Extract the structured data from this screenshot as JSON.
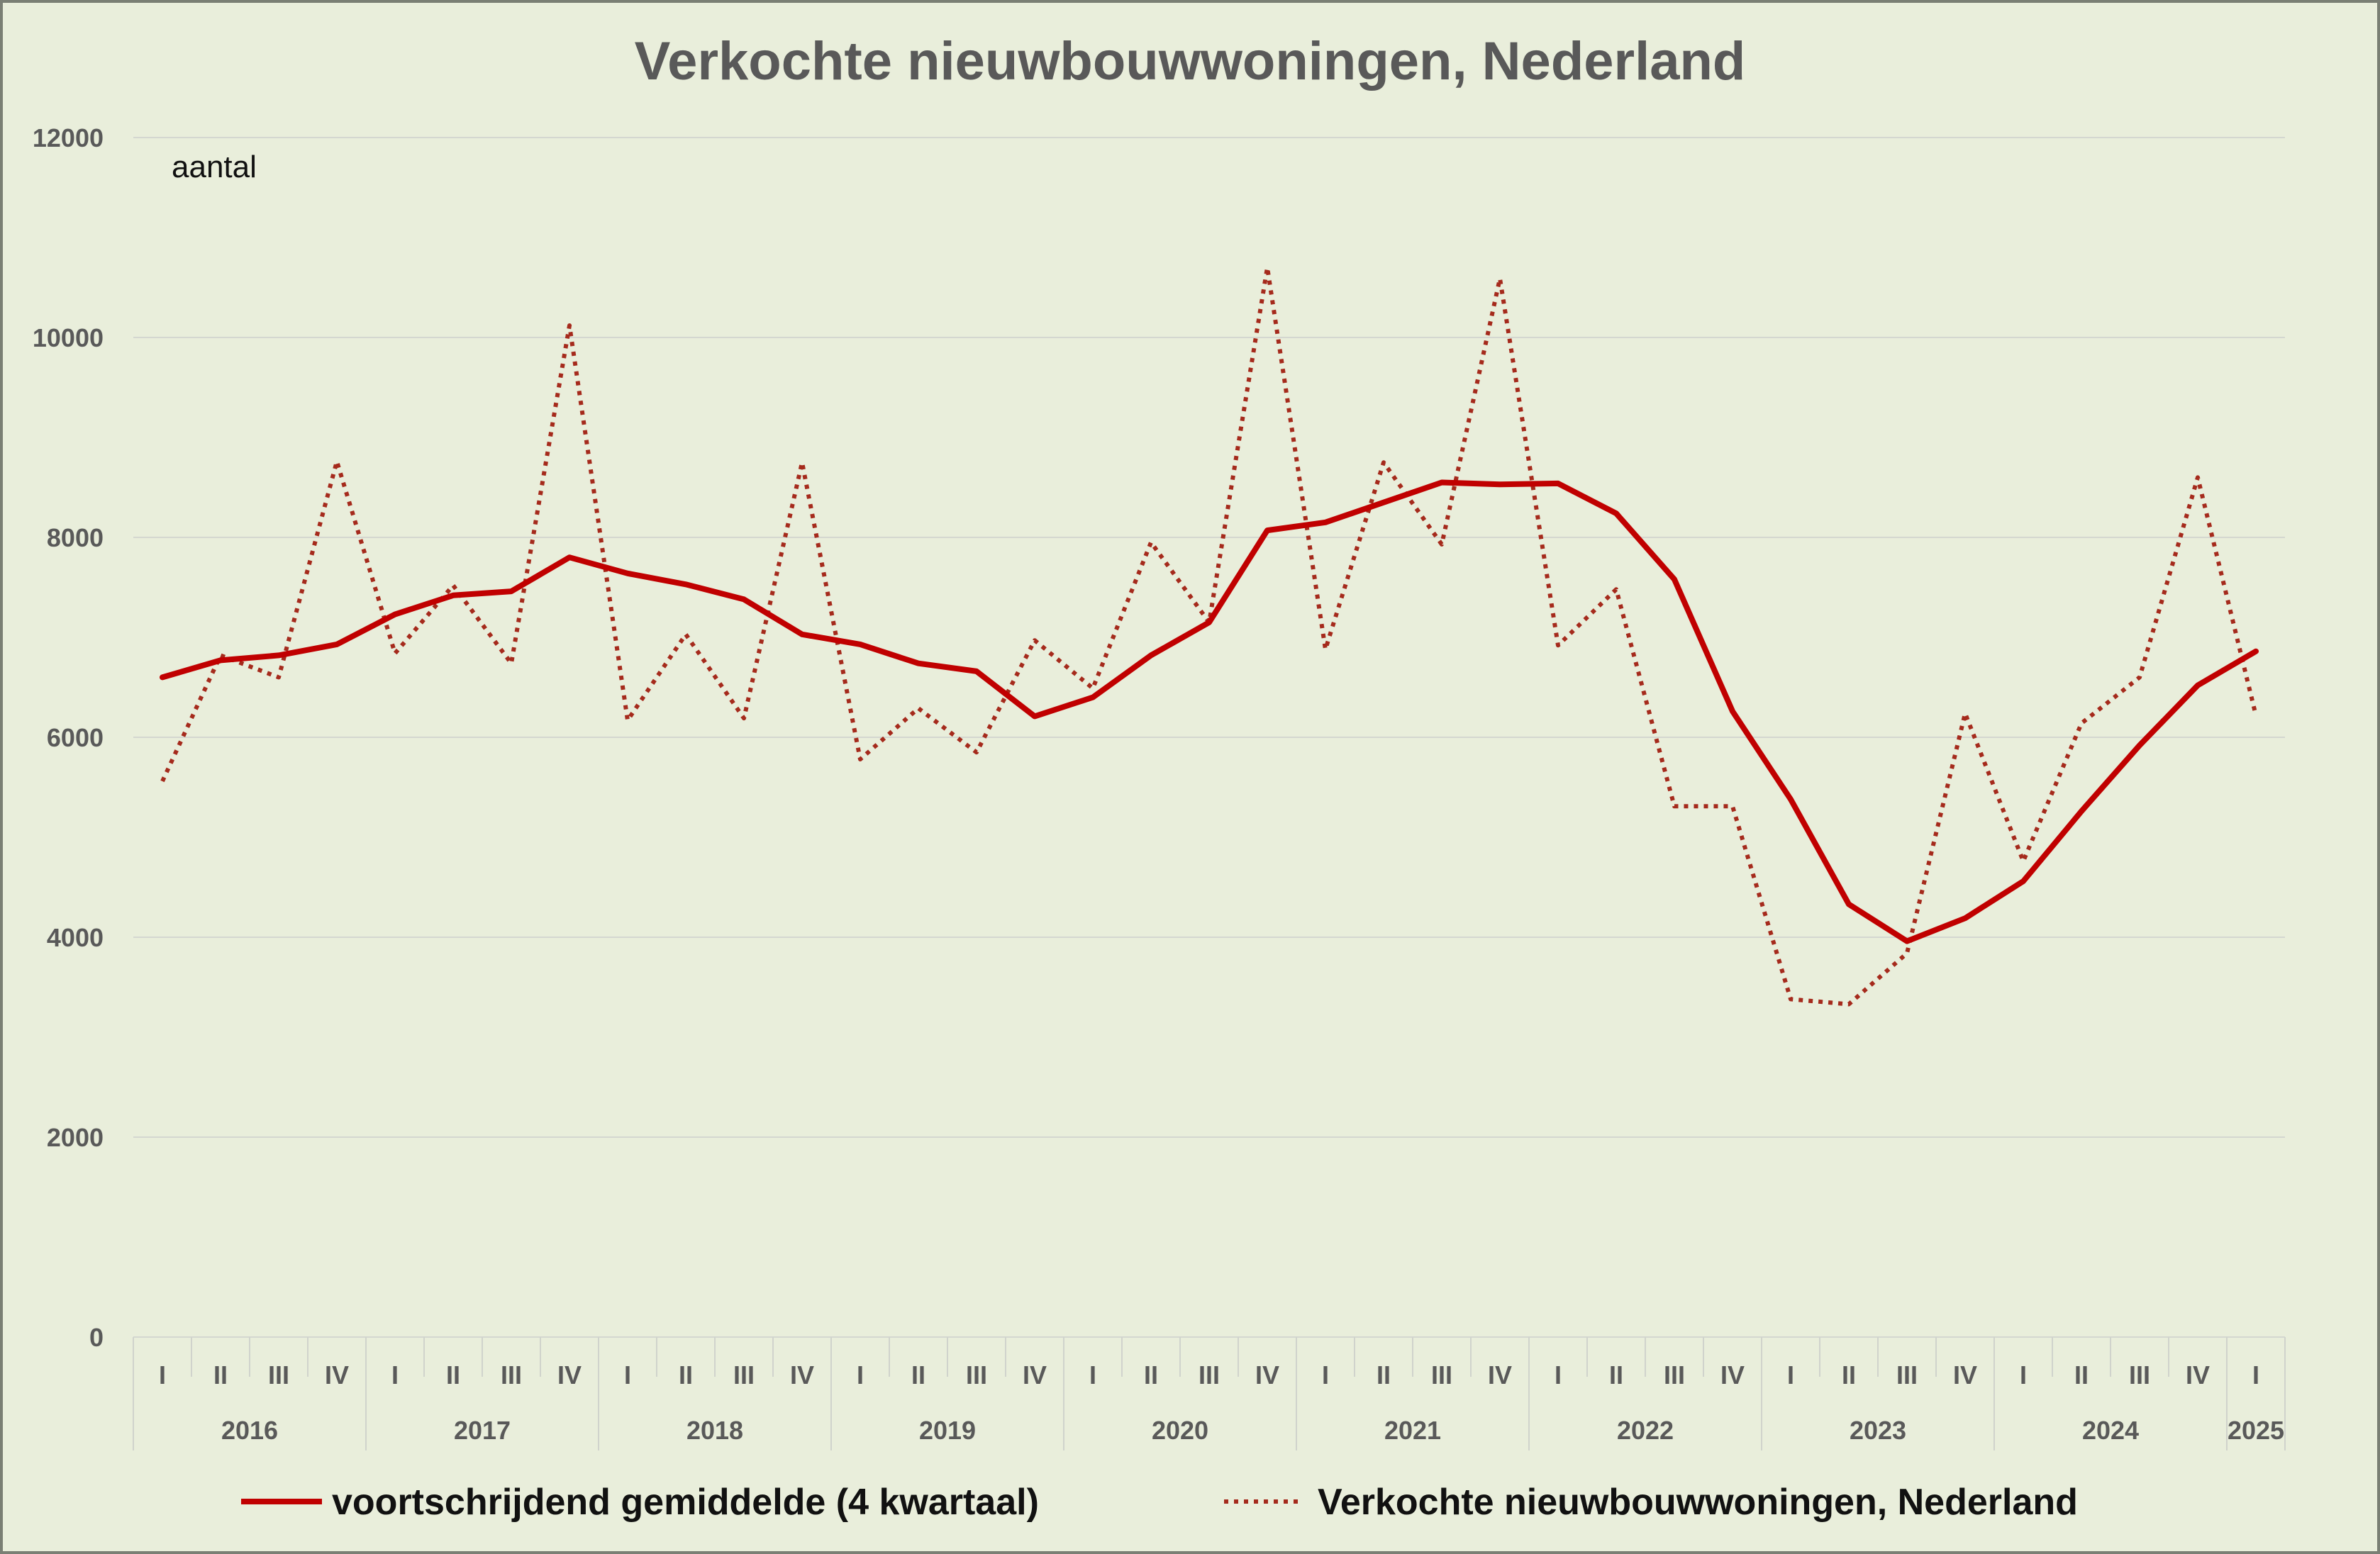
{
  "chart_data": {
    "type": "line",
    "title": "Verkochte nieuwbouwwoningen, Nederland",
    "unit_label": "aantal",
    "ylim": [
      0,
      12000
    ],
    "yticks": [
      "0",
      "2000",
      "4000",
      "6000",
      "8000",
      "10000",
      "12000"
    ],
    "grid": true,
    "legend_position": "bottom",
    "years": [
      {
        "label": "2016",
        "quarters": 4
      },
      {
        "label": "2017",
        "quarters": 4
      },
      {
        "label": "2018",
        "quarters": 4
      },
      {
        "label": "2019",
        "quarters": 4
      },
      {
        "label": "2020",
        "quarters": 4
      },
      {
        "label": "2021",
        "quarters": 4
      },
      {
        "label": "2022",
        "quarters": 4
      },
      {
        "label": "2023",
        "quarters": 4
      },
      {
        "label": "2024",
        "quarters": 4
      },
      {
        "label": "2025",
        "quarters": 1
      }
    ],
    "categories": [
      "I",
      "II",
      "III",
      "IV",
      "I",
      "II",
      "III",
      "IV",
      "I",
      "II",
      "III",
      "IV",
      "I",
      "II",
      "III",
      "IV",
      "I",
      "II",
      "III",
      "IV",
      "I",
      "II",
      "III",
      "IV",
      "I",
      "II",
      "III",
      "IV",
      "I",
      "II",
      "III",
      "IV",
      "I",
      "II",
      "III",
      "IV",
      "I"
    ],
    "series": [
      {
        "name": "voortschrijdend gemiddelde (4 kwartaal)",
        "style": "solid",
        "color": "#c00000",
        "values": [
          6600,
          6770,
          6820,
          6930,
          7230,
          7420,
          7460,
          7800,
          7640,
          7530,
          7380,
          7030,
          6930,
          6740,
          6660,
          6210,
          6400,
          6820,
          7150,
          8070,
          8150,
          8350,
          8550,
          8530,
          8540,
          8240,
          7580,
          6260,
          5380,
          4330,
          3960,
          4190,
          4560,
          5260,
          5920,
          6520,
          6860
        ]
      },
      {
        "name": "Verkochte nieuwbouwwoningen, Nederland",
        "style": "dotted",
        "color": "#a52a1c",
        "values": [
          5560,
          6820,
          6600,
          8760,
          6840,
          7520,
          6740,
          10120,
          6170,
          7030,
          6190,
          8750,
          5780,
          6290,
          5850,
          6970,
          6490,
          7950,
          7150,
          10700,
          6880,
          8750,
          7930,
          10590,
          6920,
          7480,
          5310,
          5310,
          3380,
          3330,
          3840,
          6240,
          4760,
          6140,
          6600,
          8600,
          6220
        ]
      }
    ]
  }
}
